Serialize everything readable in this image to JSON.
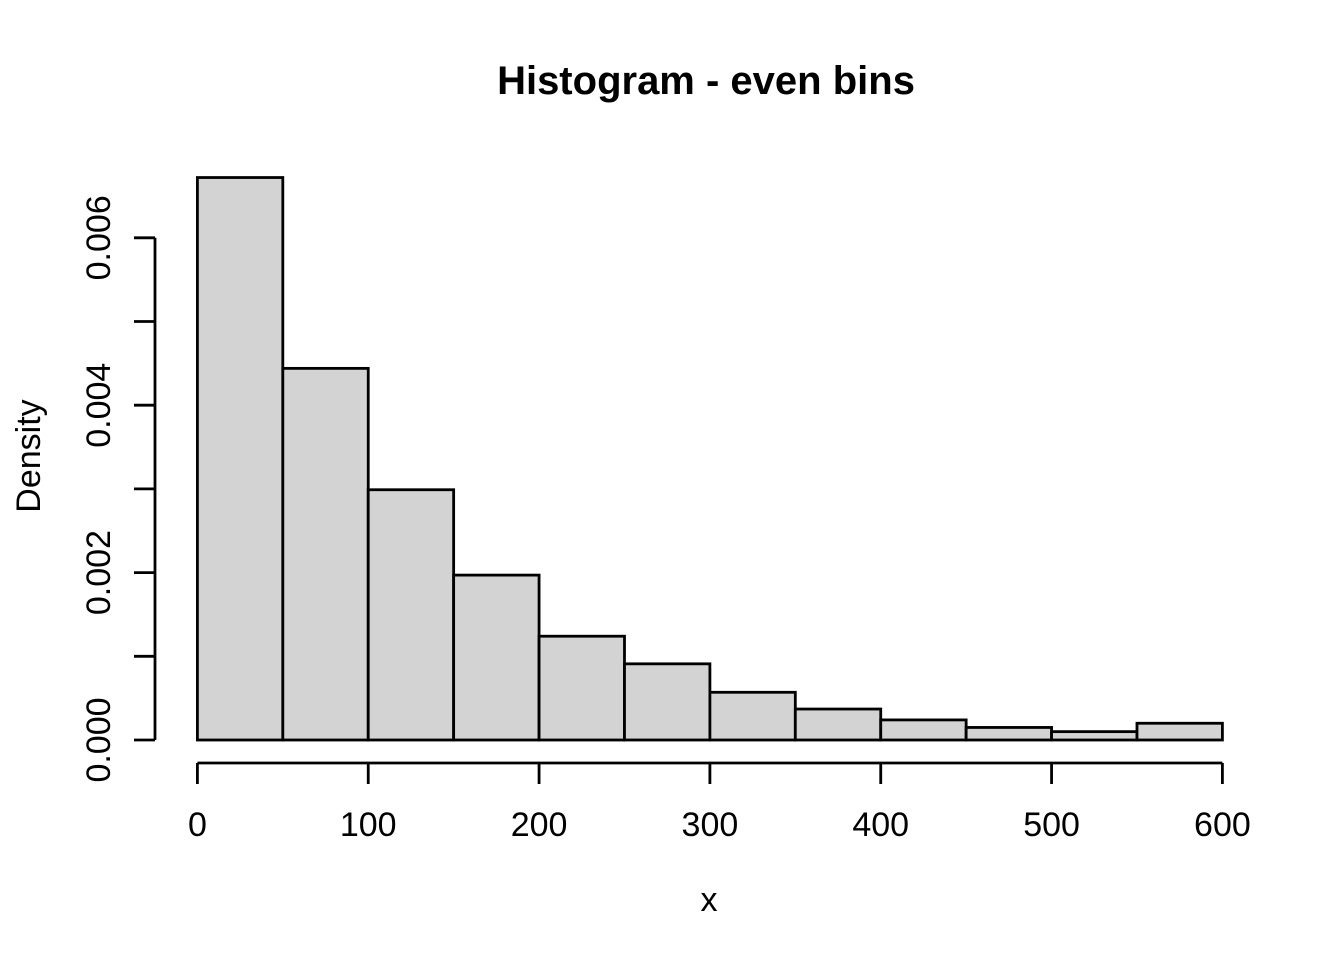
{
  "chart_data": {
    "type": "bar",
    "subtype": "histogram",
    "title": "Histogram - even bins",
    "xlabel": "x",
    "ylabel": "Density",
    "bin_width": 50,
    "bin_edges": [
      0,
      50,
      100,
      150,
      200,
      250,
      300,
      350,
      400,
      450,
      500,
      550,
      600
    ],
    "densities": [
      0.00672,
      0.00444,
      0.00299,
      0.00197,
      0.00124,
      0.00091,
      0.00057,
      0.00037,
      0.00024,
      0.00015,
      0.0001,
      0.0002
    ],
    "x_tick_values": [
      0,
      100,
      200,
      300,
      400,
      500,
      600
    ],
    "x_tick_labels": [
      "0",
      "100",
      "200",
      "300",
      "400",
      "500",
      "600"
    ],
    "y_tick_values": [
      0,
      0.002,
      0.004,
      0.006
    ],
    "y_tick_labels": [
      "0.000",
      "0.002",
      "0.004",
      "0.006"
    ],
    "y_minor_tick_step": 0.001,
    "y_minor_tick_max": 0.006,
    "xlim": [
      0,
      600
    ],
    "ylim": [
      0,
      0.0067
    ],
    "grid": false,
    "legend": null,
    "colors": {
      "bar_fill": "#d3d3d3",
      "bar_stroke": "#000000",
      "axis": "#000000",
      "text": "#000000",
      "background": "#ffffff"
    }
  }
}
